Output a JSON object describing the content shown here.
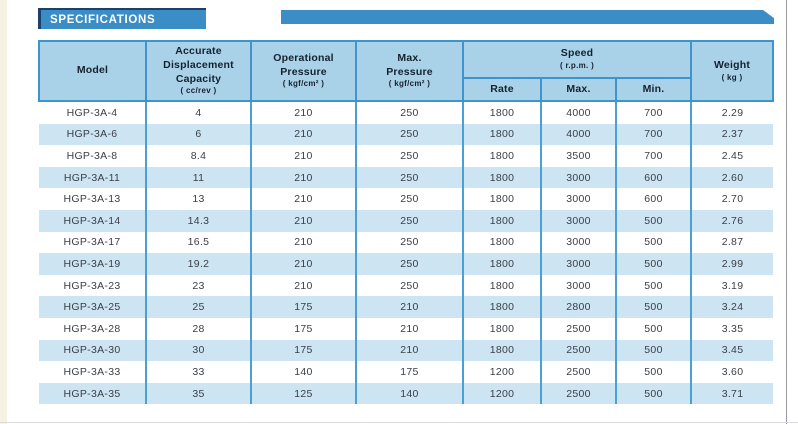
{
  "banner": {
    "title": "SPECIFICATIONS"
  },
  "colors": {
    "banner_blue": "#3a8dc5",
    "banner_navy_accent": "#1d3f6e",
    "header_cell_bg": "#a9d2e9",
    "grid_border_blue": "#4aa0d2",
    "row_stripe_blue": "#cde4f2"
  },
  "table": {
    "header": {
      "model": {
        "label": "Model"
      },
      "capacity": {
        "l1": "Accurate",
        "l2": "Displacement",
        "l3": "Capacity",
        "unit": "( cc/rev )"
      },
      "op_pressure": {
        "l1": "Operational",
        "l2": "Pressure",
        "unit": "( kgf/cm² )"
      },
      "max_pressure": {
        "l1": "Max.",
        "l2": "Pressure",
        "unit": "( kgf/cm² )"
      },
      "speed": {
        "label": "Speed",
        "unit": "( r.p.m. )",
        "rate": "Rate",
        "max": "Max.",
        "min": "Min."
      },
      "weight": {
        "label": "Weight",
        "unit": "( kg )"
      }
    },
    "rows": [
      [
        "HGP-3A-4",
        "4",
        "210",
        "250",
        "1800",
        "4000",
        "700",
        "2.29"
      ],
      [
        "HGP-3A-6",
        "6",
        "210",
        "250",
        "1800",
        "4000",
        "700",
        "2.37"
      ],
      [
        "HGP-3A-8",
        "8.4",
        "210",
        "250",
        "1800",
        "3500",
        "700",
        "2.45"
      ],
      [
        "HGP-3A-11",
        "11",
        "210",
        "250",
        "1800",
        "3000",
        "600",
        "2.60"
      ],
      [
        "HGP-3A-13",
        "13",
        "210",
        "250",
        "1800",
        "3000",
        "600",
        "2.70"
      ],
      [
        "HGP-3A-14",
        "14.3",
        "210",
        "250",
        "1800",
        "3000",
        "500",
        "2.76"
      ],
      [
        "HGP-3A-17",
        "16.5",
        "210",
        "250",
        "1800",
        "3000",
        "500",
        "2.87"
      ],
      [
        "HGP-3A-19",
        "19.2",
        "210",
        "250",
        "1800",
        "3000",
        "500",
        "2.99"
      ],
      [
        "HGP-3A-23",
        "23",
        "210",
        "250",
        "1800",
        "3000",
        "500",
        "3.19"
      ],
      [
        "HGP-3A-25",
        "25",
        "175",
        "210",
        "1800",
        "2800",
        "500",
        "3.24"
      ],
      [
        "HGP-3A-28",
        "28",
        "175",
        "210",
        "1800",
        "2500",
        "500",
        "3.35"
      ],
      [
        "HGP-3A-30",
        "30",
        "175",
        "210",
        "1800",
        "2500",
        "500",
        "3.45"
      ],
      [
        "HGP-3A-33",
        "33",
        "140",
        "175",
        "1200",
        "2500",
        "500",
        "3.60"
      ],
      [
        "HGP-3A-35",
        "35",
        "125",
        "140",
        "1200",
        "2500",
        "500",
        "3.71"
      ]
    ],
    "cell_names": [
      "model-cell",
      "capacity-cell",
      "op-pressure-cell",
      "max-pressure-cell",
      "speed-rate-cell",
      "speed-max-cell",
      "speed-min-cell",
      "weight-cell"
    ]
  }
}
